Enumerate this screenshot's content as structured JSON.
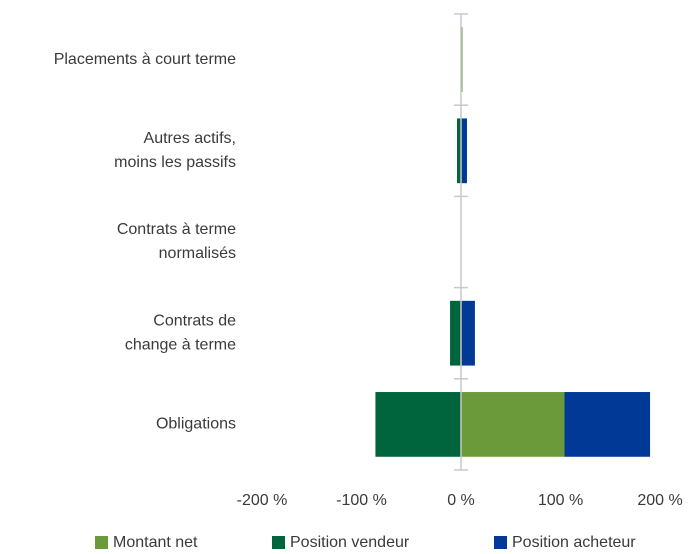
{
  "chart_data": {
    "type": "stacked-barh",
    "categories": [
      [
        "Placements à court terme"
      ],
      [
        "Autres actifs,",
        "moins les passifs"
      ],
      [
        "Contrats à terme",
        "normalisés"
      ],
      [
        "Contrats de",
        "change à terme"
      ],
      [
        "Obligations"
      ]
    ],
    "series": [
      {
        "name": "Montant net",
        "color": "#6b9a3b",
        "values": [
          1,
          0,
          0,
          0,
          104
        ]
      },
      {
        "name": "Position vendeur",
        "color": "#00643c",
        "values": [
          0,
          -4,
          0,
          -11,
          -86
        ]
      },
      {
        "name": "Position acheteur",
        "color": "#003a96",
        "values": [
          0,
          6,
          0,
          14,
          86
        ]
      }
    ],
    "xlim": [
      -200,
      200
    ],
    "xticks": [
      {
        "value": -200,
        "label": "-200 %"
      },
      {
        "value": -100,
        "label": "-100 %"
      },
      {
        "value": 0,
        "label": "0 %"
      },
      {
        "value": 100,
        "label": "100 %"
      },
      {
        "value": 200,
        "label": "200 %"
      }
    ],
    "legend": "bottom"
  }
}
